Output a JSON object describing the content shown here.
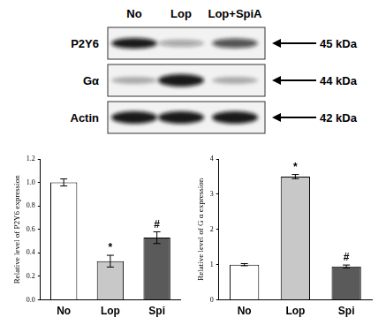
{
  "blot": {
    "lanes": [
      "No",
      "Lop",
      "Lop+SpiA"
    ],
    "rows": [
      {
        "label": "P2Y6",
        "size": "45 kDa"
      },
      {
        "label": "Gα",
        "size": "44 kDa"
      },
      {
        "label": "Actin",
        "size": "42 kDa"
      }
    ]
  },
  "chart_data": [
    {
      "type": "bar",
      "y_label": "Relative level of P2Y6 expression",
      "categories": [
        "No",
        "Lop",
        "Spi"
      ],
      "values": [
        1.0,
        0.33,
        0.53
      ],
      "errors": [
        0.03,
        0.05,
        0.05
      ],
      "colors": [
        "#ffffff",
        "#c8c8c8",
        "#5a5a5a"
      ],
      "ylim": [
        0,
        1.2
      ],
      "yticks": [
        {
          "value": 0,
          "label": "0.0"
        },
        0.2,
        0.4,
        0.6,
        0.8,
        {
          "value": 1,
          "label": "1.0"
        },
        1.2
      ],
      "annotations": [
        {
          "category": "Lop",
          "text": "*"
        },
        {
          "category": "Spi",
          "text": "#"
        }
      ],
      "grid": false
    },
    {
      "type": "bar",
      "y_label": "Relative level of G α expression",
      "categories": [
        "No",
        "Lop",
        "Spi"
      ],
      "values": [
        1.0,
        3.5,
        0.95
      ],
      "errors": [
        0.03,
        0.06,
        0.04
      ],
      "colors": [
        "#ffffff",
        "#c8c8c8",
        "#5a5a5a"
      ],
      "ylim": [
        0,
        4
      ],
      "yticks": [
        0,
        1,
        2,
        3,
        4
      ],
      "annotations": [
        {
          "category": "Lop",
          "text": "*"
        },
        {
          "category": "Spi",
          "text": "#"
        }
      ],
      "grid": false
    }
  ]
}
